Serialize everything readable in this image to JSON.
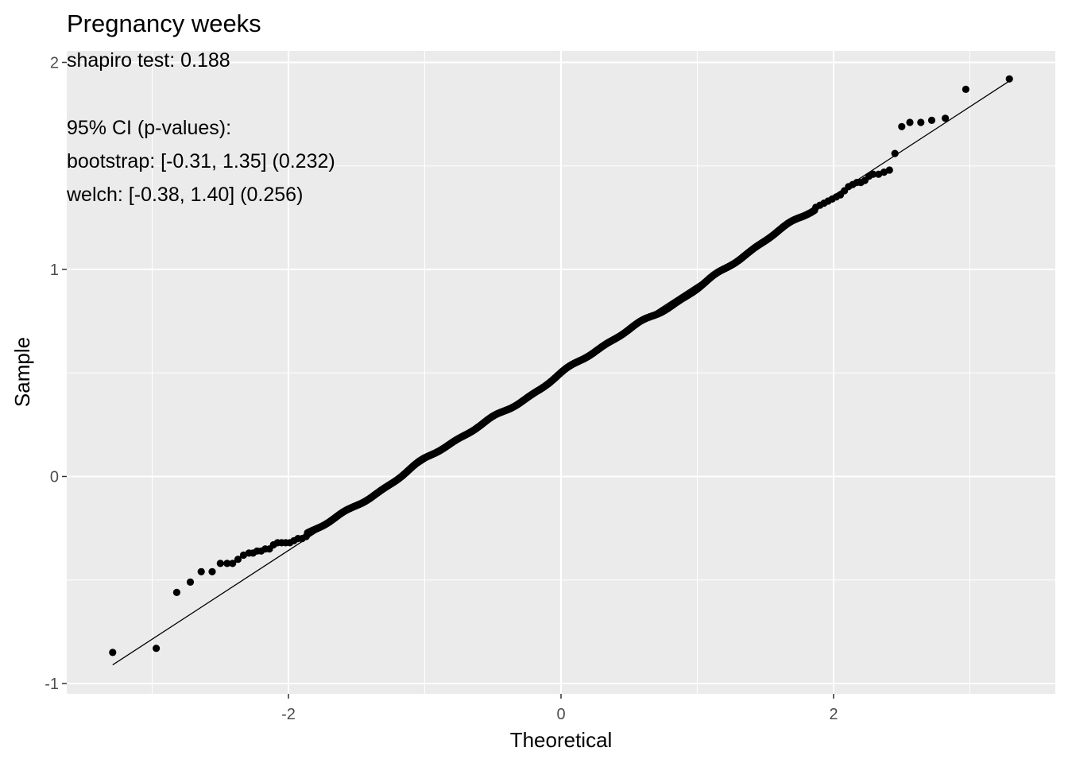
{
  "chart_data": {
    "type": "scatter",
    "subtype": "qq-plot",
    "title": "Pregnancy weeks",
    "xlabel": "Theoretical",
    "ylabel": "Sample",
    "xlim": [
      -3.61,
      3.61
    ],
    "ylim": [
      -1.05,
      2.05
    ],
    "x_ticks": [
      -2,
      0,
      2
    ],
    "x_tick_labels": [
      "-2",
      "0",
      "2"
    ],
    "y_ticks": [
      -1,
      0,
      1,
      2
    ],
    "y_tick_labels": [
      "-1",
      "0",
      "1",
      "2"
    ],
    "grid": true,
    "panel_background": "#ebebeb",
    "grid_color": "#ffffff",
    "point_color": "#000000",
    "line_color": "#000000",
    "annotations": [
      "shapiro test: 0.188",
      "",
      "95% CI (p-values):",
      "bootstrap: [-0.31, 1.35] (0.232)",
      "welch: [-0.38, 1.40] (0.256)"
    ],
    "reference_line": {
      "x": [
        -3.29,
        3.29
      ],
      "y": [
        -0.91,
        1.91
      ]
    },
    "distribution": {
      "center": 0.495,
      "slope": 0.42,
      "n_body": 1000
    },
    "tail_points": [
      {
        "x": -3.29,
        "y": -0.85
      },
      {
        "x": -2.97,
        "y": -0.83
      },
      {
        "x": -2.82,
        "y": -0.56
      },
      {
        "x": -2.72,
        "y": -0.51
      },
      {
        "x": -2.64,
        "y": -0.46
      },
      {
        "x": -2.56,
        "y": -0.46
      },
      {
        "x": -2.5,
        "y": -0.42
      },
      {
        "x": -2.45,
        "y": -0.42
      },
      {
        "x": -2.41,
        "y": -0.42
      },
      {
        "x": -2.37,
        "y": -0.4
      },
      {
        "x": -2.33,
        "y": -0.38
      },
      {
        "x": -2.29,
        "y": -0.37
      },
      {
        "x": -2.26,
        "y": -0.37
      },
      {
        "x": -2.23,
        "y": -0.36
      },
      {
        "x": -2.2,
        "y": -0.36
      },
      {
        "x": -2.17,
        "y": -0.35
      },
      {
        "x": -2.14,
        "y": -0.35
      },
      {
        "x": -2.11,
        "y": -0.33
      },
      {
        "x": -2.08,
        "y": -0.32
      },
      {
        "x": -2.05,
        "y": -0.32
      },
      {
        "x": -2.02,
        "y": -0.32
      },
      {
        "x": -1.99,
        "y": -0.32
      },
      {
        "x": -1.96,
        "y": -0.31
      },
      {
        "x": -1.93,
        "y": -0.3
      },
      {
        "x": -1.9,
        "y": -0.3
      },
      {
        "x": -1.87,
        "y": -0.29
      },
      {
        "x": 1.87,
        "y": 1.3
      },
      {
        "x": 1.9,
        "y": 1.31
      },
      {
        "x": 1.93,
        "y": 1.32
      },
      {
        "x": 1.96,
        "y": 1.33
      },
      {
        "x": 1.99,
        "y": 1.34
      },
      {
        "x": 2.02,
        "y": 1.35
      },
      {
        "x": 2.05,
        "y": 1.36
      },
      {
        "x": 2.08,
        "y": 1.38
      },
      {
        "x": 2.11,
        "y": 1.4
      },
      {
        "x": 2.14,
        "y": 1.41
      },
      {
        "x": 2.17,
        "y": 1.42
      },
      {
        "x": 2.2,
        "y": 1.42
      },
      {
        "x": 2.23,
        "y": 1.43
      },
      {
        "x": 2.26,
        "y": 1.45
      },
      {
        "x": 2.29,
        "y": 1.46
      },
      {
        "x": 2.33,
        "y": 1.46
      },
      {
        "x": 2.37,
        "y": 1.47
      },
      {
        "x": 2.41,
        "y": 1.48
      },
      {
        "x": 2.45,
        "y": 1.56
      },
      {
        "x": 2.5,
        "y": 1.69
      },
      {
        "x": 2.56,
        "y": 1.71
      },
      {
        "x": 2.64,
        "y": 1.71
      },
      {
        "x": 2.72,
        "y": 1.72
      },
      {
        "x": 2.82,
        "y": 1.73
      },
      {
        "x": 2.97,
        "y": 1.87
      },
      {
        "x": 3.29,
        "y": 1.92
      }
    ]
  }
}
